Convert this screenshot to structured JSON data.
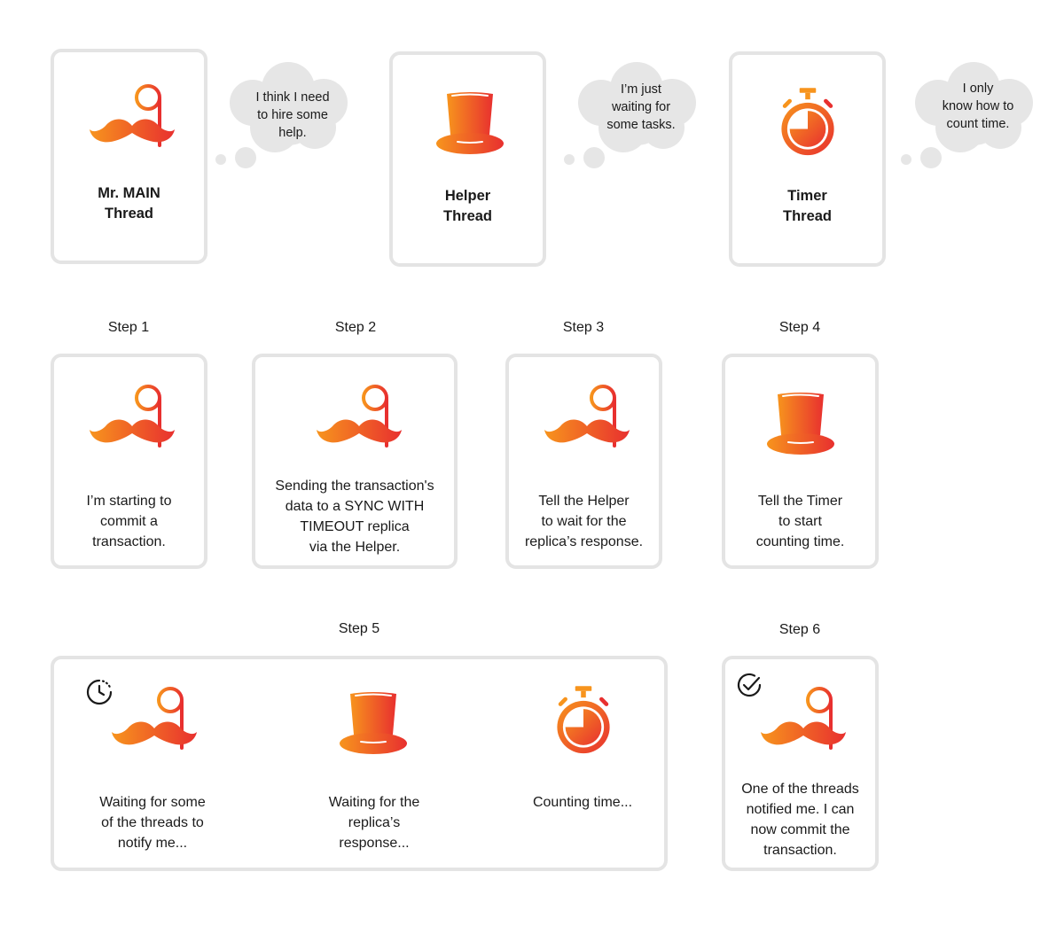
{
  "characters": {
    "main": {
      "name": "Mr. MAIN\nThread",
      "thought": "I think I need\nto hire some\nhelp.",
      "icon": "monocle-mustache-icon"
    },
    "helper": {
      "name": "Helper\nThread",
      "thought": "I’m just\nwaiting for\nsome tasks.",
      "icon": "top-hat-icon"
    },
    "timer": {
      "name": "Timer\nThread",
      "thought": "I only\nknow how to\ncount time.",
      "icon": "stopwatch-icon"
    }
  },
  "steps": [
    {
      "title": "Step 1",
      "text": "I’m starting to\ncommit a\ntransaction.",
      "icon": "monocle-mustache-icon"
    },
    {
      "title": "Step 2",
      "text": "Sending the transaction's\ndata to a SYNC WITH\nTIMEOUT replica\nvia the Helper.",
      "icon": "monocle-mustache-icon"
    },
    {
      "title": "Step 3",
      "text": "Tell the Helper\nto wait for the\nreplica’s response.",
      "icon": "monocle-mustache-icon"
    },
    {
      "title": "Step 4",
      "text": "Tell the Timer\nto start\ncounting time.",
      "icon": "top-hat-icon"
    }
  ],
  "step5": {
    "title": "Step 5",
    "main_text": "Waiting for some\nof the threads to\nnotify me...",
    "helper_text": "Waiting for the\nreplica’s\nresponse...",
    "timer_text": "Counting time...",
    "badge_icon": "clock-waiting-icon"
  },
  "step6": {
    "title": "Step 6",
    "text": "One of the threads\nnotified me. I can\nnow commit the\ntransaction.",
    "badge_icon": "check-circle-icon"
  },
  "colors": {
    "gradient_start": "#f7941d",
    "gradient_end": "#e8302f",
    "card_border": "#e4e4e4",
    "bubble": "#e6e6e6"
  }
}
